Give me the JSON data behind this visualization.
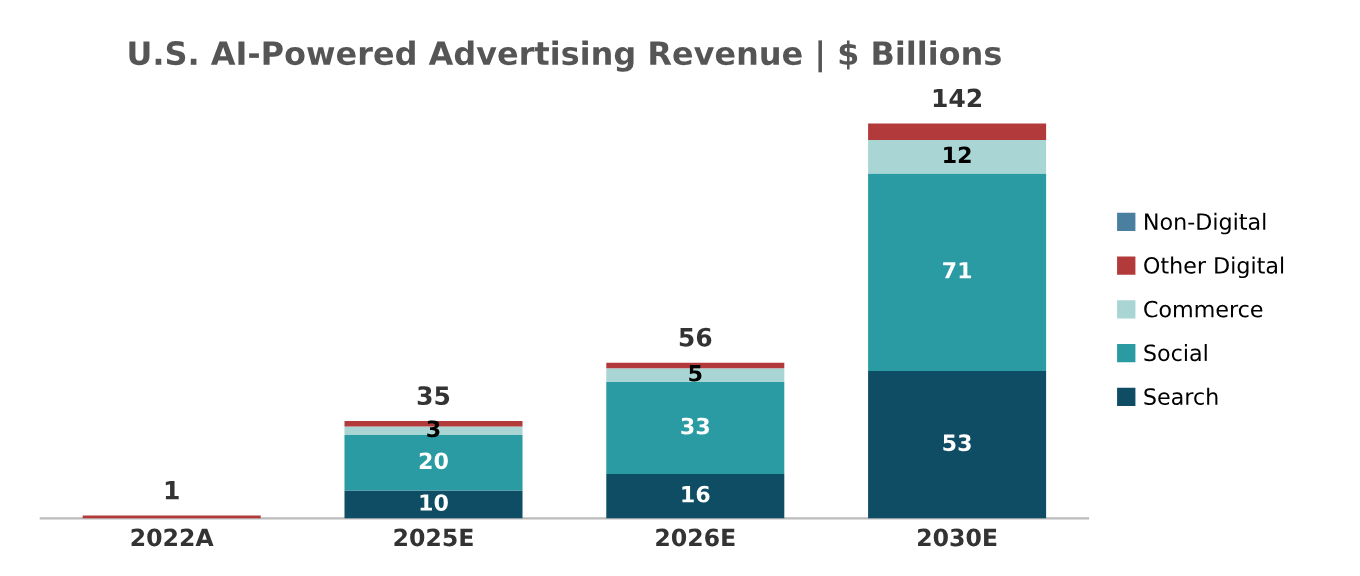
{
  "chart_data": {
    "type": "bar",
    "title": "U.S. AI-Powered Advertising Revenue | $ Billions",
    "categories": [
      "2022A",
      "2025E",
      "2026E",
      "2030E"
    ],
    "stacked": true,
    "tick_labels": "x",
    "legend": "right",
    "grid": false,
    "series": [
      {
        "name": "Search",
        "color": "#0e4d64",
        "values": [
          null,
          10,
          16,
          53
        ],
        "value_labels": [
          null,
          "10",
          "16",
          "53"
        ]
      },
      {
        "name": "Social",
        "color": "#2a9ba3",
        "values": [
          null,
          20,
          33,
          71
        ],
        "value_labels": [
          null,
          "20",
          "33",
          "71"
        ]
      },
      {
        "name": "Commerce",
        "color": "#a9d5d5",
        "values": [
          null,
          3,
          5,
          12
        ],
        "value_labels": [
          null,
          "3",
          "5",
          "12"
        ]
      },
      {
        "name": "Other Digital",
        "color": "#b23a3a",
        "values": [
          1,
          2,
          2,
          6
        ],
        "value_labels": [
          null,
          null,
          null,
          null
        ]
      },
      {
        "name": "Non-Digital",
        "color": "#4a7fa0",
        "values": [
          null,
          null,
          null,
          null
        ],
        "value_labels": [
          null,
          null,
          null,
          null
        ]
      }
    ],
    "totals": [
      "1",
      "35",
      "56",
      "142"
    ]
  }
}
